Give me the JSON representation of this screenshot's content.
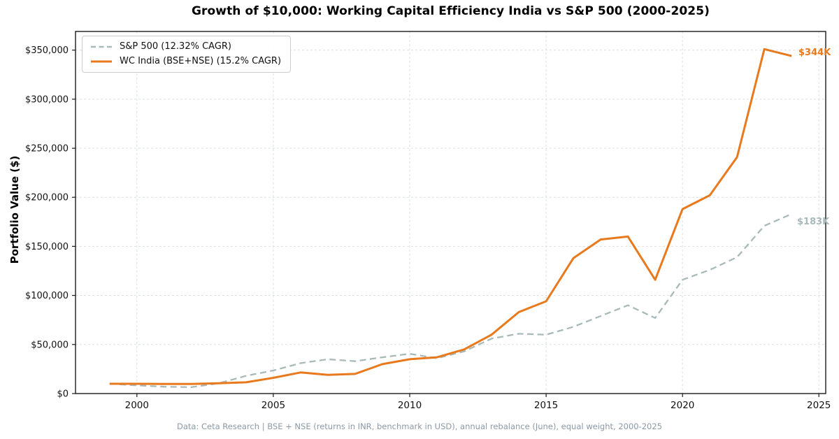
{
  "title": "Growth of $10,000: Working Capital Efficiency India vs S&P 500 (2000-2025)",
  "ylabel": "Portfolio Value ($)",
  "footer": "Data: Ceta Research | BSE + NSE (returns in INR, benchmark in USD), annual rebalance (June), equal weight, 2000-2025",
  "colors": {
    "orange": "#e8791c",
    "gray": "#a9b9ba",
    "grid": "#dcdfe2",
    "spine": "#1a1a1a"
  },
  "legend": [
    {
      "label": "S&P 500 (12.32% CAGR)",
      "color": "#a9b9ba",
      "style": "dashed"
    },
    {
      "label": "WC India (BSE+NSE) (15.2% CAGR)",
      "color": "#e8791c",
      "style": "solid"
    }
  ],
  "annotations": [
    {
      "text": "$344K",
      "color": "#e8791c",
      "series": "WC India (BSE+NSE)"
    },
    {
      "text": "$183K",
      "color": "#a9b9ba",
      "series": "S&P 500"
    }
  ],
  "chart_data": {
    "type": "line",
    "x": [
      1999,
      2000,
      2001,
      2002,
      2003,
      2004,
      2005,
      2006,
      2007,
      2008,
      2009,
      2010,
      2011,
      2012,
      2013,
      2014,
      2015,
      2016,
      2017,
      2018,
      2019,
      2020,
      2021,
      2022,
      2023,
      2024
    ],
    "series": [
      {
        "name": "S&P 500 (12.32% CAGR)",
        "color": "#a9b9ba",
        "dash": true,
        "width": 2.3,
        "values": [
          10000,
          8300,
          7000,
          6500,
          10500,
          18000,
          23500,
          31000,
          35000,
          33000,
          37000,
          40500,
          36000,
          43000,
          56000,
          61000,
          60000,
          68000,
          79000,
          90000,
          77000,
          116000,
          126000,
          139000,
          171000,
          183000
        ]
      },
      {
        "name": "WC India (BSE+NSE) (15.2% CAGR)",
        "color": "#e8791c",
        "dash": false,
        "width": 3,
        "values": [
          10000,
          10000,
          9800,
          9800,
          10500,
          11500,
          16000,
          21500,
          19000,
          20000,
          30000,
          35000,
          37000,
          45000,
          60000,
          83000,
          94000,
          138000,
          157000,
          160000,
          116000,
          188000,
          202000,
          241000,
          351000,
          344000
        ]
      }
    ],
    "xlim": [
      1997.75,
      2025.25
    ],
    "ylim": [
      0,
      369000
    ],
    "x_ticks": [
      2000,
      2005,
      2010,
      2015,
      2020,
      2025
    ],
    "y_ticks": [
      0,
      50000,
      100000,
      150000,
      200000,
      250000,
      300000,
      350000
    ],
    "y_tick_labels": [
      "$0",
      "$50,000",
      "$100,000",
      "$150,000",
      "$200,000",
      "$250,000",
      "$300,000",
      "$350,000"
    ],
    "grid": true,
    "legend_position": "upper left",
    "title": "Growth of $10,000: Working Capital Efficiency India vs S&P 500 (2000-2025)",
    "xlabel": "",
    "ylabel": "Portfolio Value ($)"
  }
}
